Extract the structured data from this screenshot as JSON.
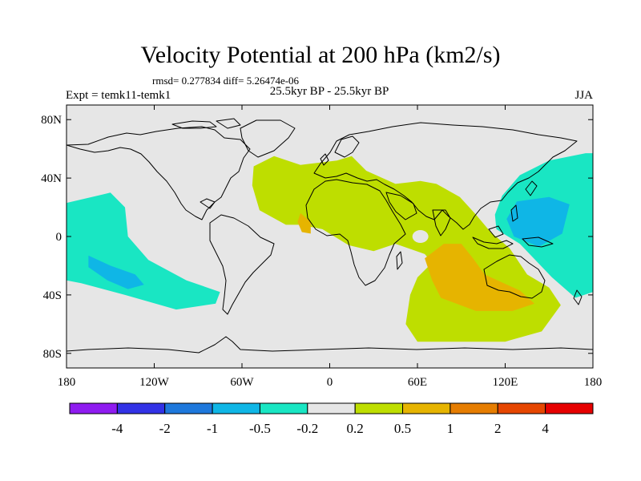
{
  "chart_data": {
    "type": "heatmap",
    "title": "Velocity Potential at 200 hPa (km2/s)",
    "stats": "rmsd= 0.277834 diff= 5.26474e-06",
    "subtitle": "25.5kyr BP - 25.5kyr BP",
    "left_label": "Expt = temk11-temk1",
    "right_label": "JJA",
    "x_ticks": [
      "180",
      "120W",
      "60W",
      "0",
      "60E",
      "120E",
      "180"
    ],
    "x_tick_values": [
      -180,
      -120,
      -60,
      0,
      60,
      120,
      180
    ],
    "y_ticks": [
      "80N",
      "40N",
      "0",
      "40S",
      "80S"
    ],
    "y_tick_values": [
      80,
      40,
      0,
      -40,
      -80
    ],
    "xlim": [
      -180,
      180
    ],
    "ylim": [
      -90,
      90
    ],
    "colorbar": {
      "bins": [
        {
          "range": "< -4",
          "color": "#8f1cf0"
        },
        {
          "range": "-4 to -2",
          "color": "#3232e6"
        },
        {
          "range": "-2 to -1",
          "color": "#1e78dc"
        },
        {
          "range": "-1 to -0.5",
          "color": "#0fb6e6"
        },
        {
          "range": "-0.5 to -0.2",
          "color": "#19e6c3"
        },
        {
          "range": "-0.2 to 0.2",
          "color": "#e6e6e6"
        },
        {
          "range": "0.2 to 0.5",
          "color": "#bede00"
        },
        {
          "range": "0.5 to 1",
          "color": "#e6b400"
        },
        {
          "range": "1 to 2",
          "color": "#e67d00"
        },
        {
          "range": "2 to 4",
          "color": "#e64600"
        },
        {
          "range": "> 4",
          "color": "#e60000"
        }
      ],
      "labels": [
        "-4",
        "-2",
        "-1",
        "-0.5",
        "-0.2",
        "0.2",
        "0.5",
        "1",
        "2",
        "4"
      ]
    },
    "regions": [
      {
        "name": "east-pacific-negative",
        "level": "-0.5 to -0.2",
        "color": "#19e6c3",
        "outline": [
          [
            -180,
            23
          ],
          [
            -150,
            30
          ],
          [
            -140,
            20
          ],
          [
            -138,
            0
          ],
          [
            -124,
            -16
          ],
          [
            -98,
            -30
          ],
          [
            -75,
            -38
          ],
          [
            -78,
            -46
          ],
          [
            -105,
            -50
          ],
          [
            -140,
            -40
          ],
          [
            -170,
            -32
          ],
          [
            -180,
            -30
          ]
        ]
      },
      {
        "name": "east-pacific-core",
        "level": "-1 to -0.5",
        "color": "#0fb6e6",
        "outline": [
          [
            -165,
            -13
          ],
          [
            -150,
            -20
          ],
          [
            -133,
            -26
          ],
          [
            -127,
            -33
          ],
          [
            -138,
            -36
          ],
          [
            -152,
            -30
          ],
          [
            -165,
            -21
          ]
        ]
      },
      {
        "name": "atlantic-africa-indian-positive",
        "level": "0.2 to 0.5",
        "color": "#bede00",
        "outline": [
          [
            -52,
            48
          ],
          [
            -38,
            55
          ],
          [
            -20,
            49
          ],
          [
            5,
            52
          ],
          [
            15,
            55
          ],
          [
            25,
            45
          ],
          [
            45,
            36
          ],
          [
            62,
            38
          ],
          [
            73,
            36
          ],
          [
            89,
            27
          ],
          [
            100,
            15
          ],
          [
            110,
            3
          ],
          [
            123,
            -8
          ],
          [
            135,
            -26
          ],
          [
            150,
            -35
          ],
          [
            158,
            -47
          ],
          [
            145,
            -65
          ],
          [
            120,
            -72
          ],
          [
            60,
            -72
          ],
          [
            52,
            -60
          ],
          [
            55,
            -40
          ],
          [
            60,
            -28
          ],
          [
            70,
            -18
          ],
          [
            65,
            -12
          ],
          [
            45,
            -5
          ],
          [
            30,
            -10
          ],
          [
            13,
            -6
          ],
          [
            -5,
            5
          ],
          [
            -20,
            8
          ],
          [
            -30,
            8
          ],
          [
            -48,
            18
          ],
          [
            -53,
            35
          ]
        ]
      },
      {
        "name": "guinea-positive",
        "level": "0.5 to 1",
        "color": "#e6b400",
        "outline": [
          [
            -20,
            16
          ],
          [
            -13,
            10
          ],
          [
            -13,
            2
          ],
          [
            -19,
            3
          ],
          [
            -22,
            10
          ]
        ]
      },
      {
        "name": "indian-ocean-positive",
        "level": "0.5 to 1",
        "color": "#e6b400",
        "outline": [
          [
            65,
            -15
          ],
          [
            78,
            -5
          ],
          [
            90,
            -5
          ],
          [
            98,
            -15
          ],
          [
            106,
            -26
          ],
          [
            130,
            -37
          ],
          [
            140,
            -46
          ],
          [
            125,
            -51
          ],
          [
            100,
            -51
          ],
          [
            76,
            -42
          ],
          [
            70,
            -30
          ]
        ]
      },
      {
        "name": "west-pacific-negative",
        "level": "-0.5 to -0.2",
        "color": "#19e6c3",
        "outline": [
          [
            113,
            15
          ],
          [
            118,
            28
          ],
          [
            130,
            42
          ],
          [
            150,
            52
          ],
          [
            175,
            57
          ],
          [
            180,
            57
          ],
          [
            180,
            -38
          ],
          [
            168,
            -42
          ],
          [
            152,
            -28
          ],
          [
            130,
            -5
          ],
          [
            114,
            5
          ]
        ]
      },
      {
        "name": "west-pacific-core",
        "level": "-1 to -0.5",
        "color": "#0fb6e6",
        "outline": [
          [
            121,
            12
          ],
          [
            128,
            24
          ],
          [
            150,
            27
          ],
          [
            164,
            22
          ],
          [
            159,
            2
          ],
          [
            143,
            -7
          ],
          [
            126,
            0
          ]
        ]
      }
    ],
    "holes": [
      {
        "name": "horn-of-africa-gap",
        "center": [
          62,
          0
        ]
      }
    ]
  }
}
